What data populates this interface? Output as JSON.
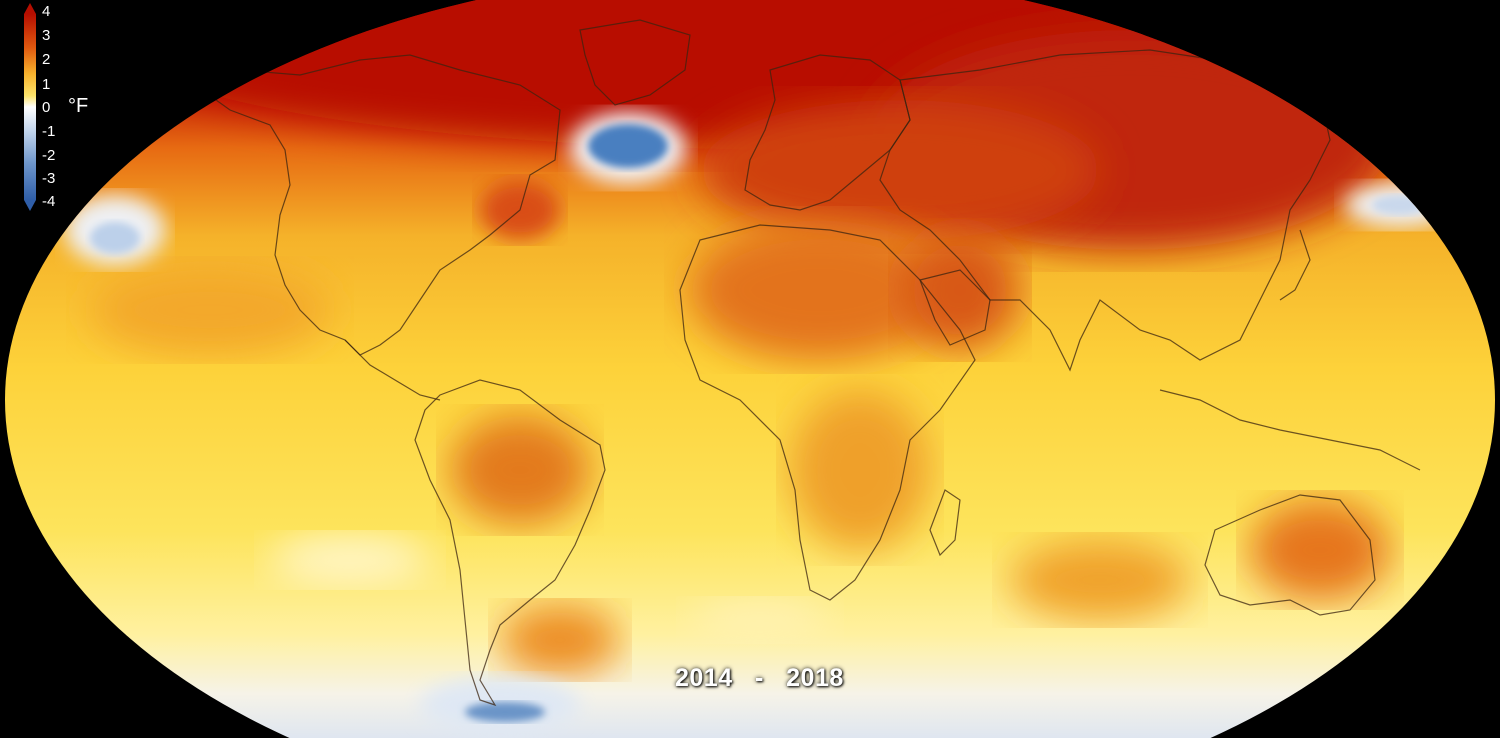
{
  "legend": {
    "unit": "°F",
    "ticks": [
      "4",
      "3",
      "2",
      "1",
      "0",
      "-1",
      "-2",
      "-3",
      "-4"
    ],
    "colors": {
      "warm_max": "#b50e00",
      "warm_high": "#e0580f",
      "warm_mid": "#f39a22",
      "warm_low": "#fdd835",
      "neutral": "#ffffff",
      "cool_low": "#c6d8ee",
      "cool_max": "#3a72b8"
    }
  },
  "period": {
    "start": "2014",
    "separator": "-",
    "end": "2018"
  }
}
